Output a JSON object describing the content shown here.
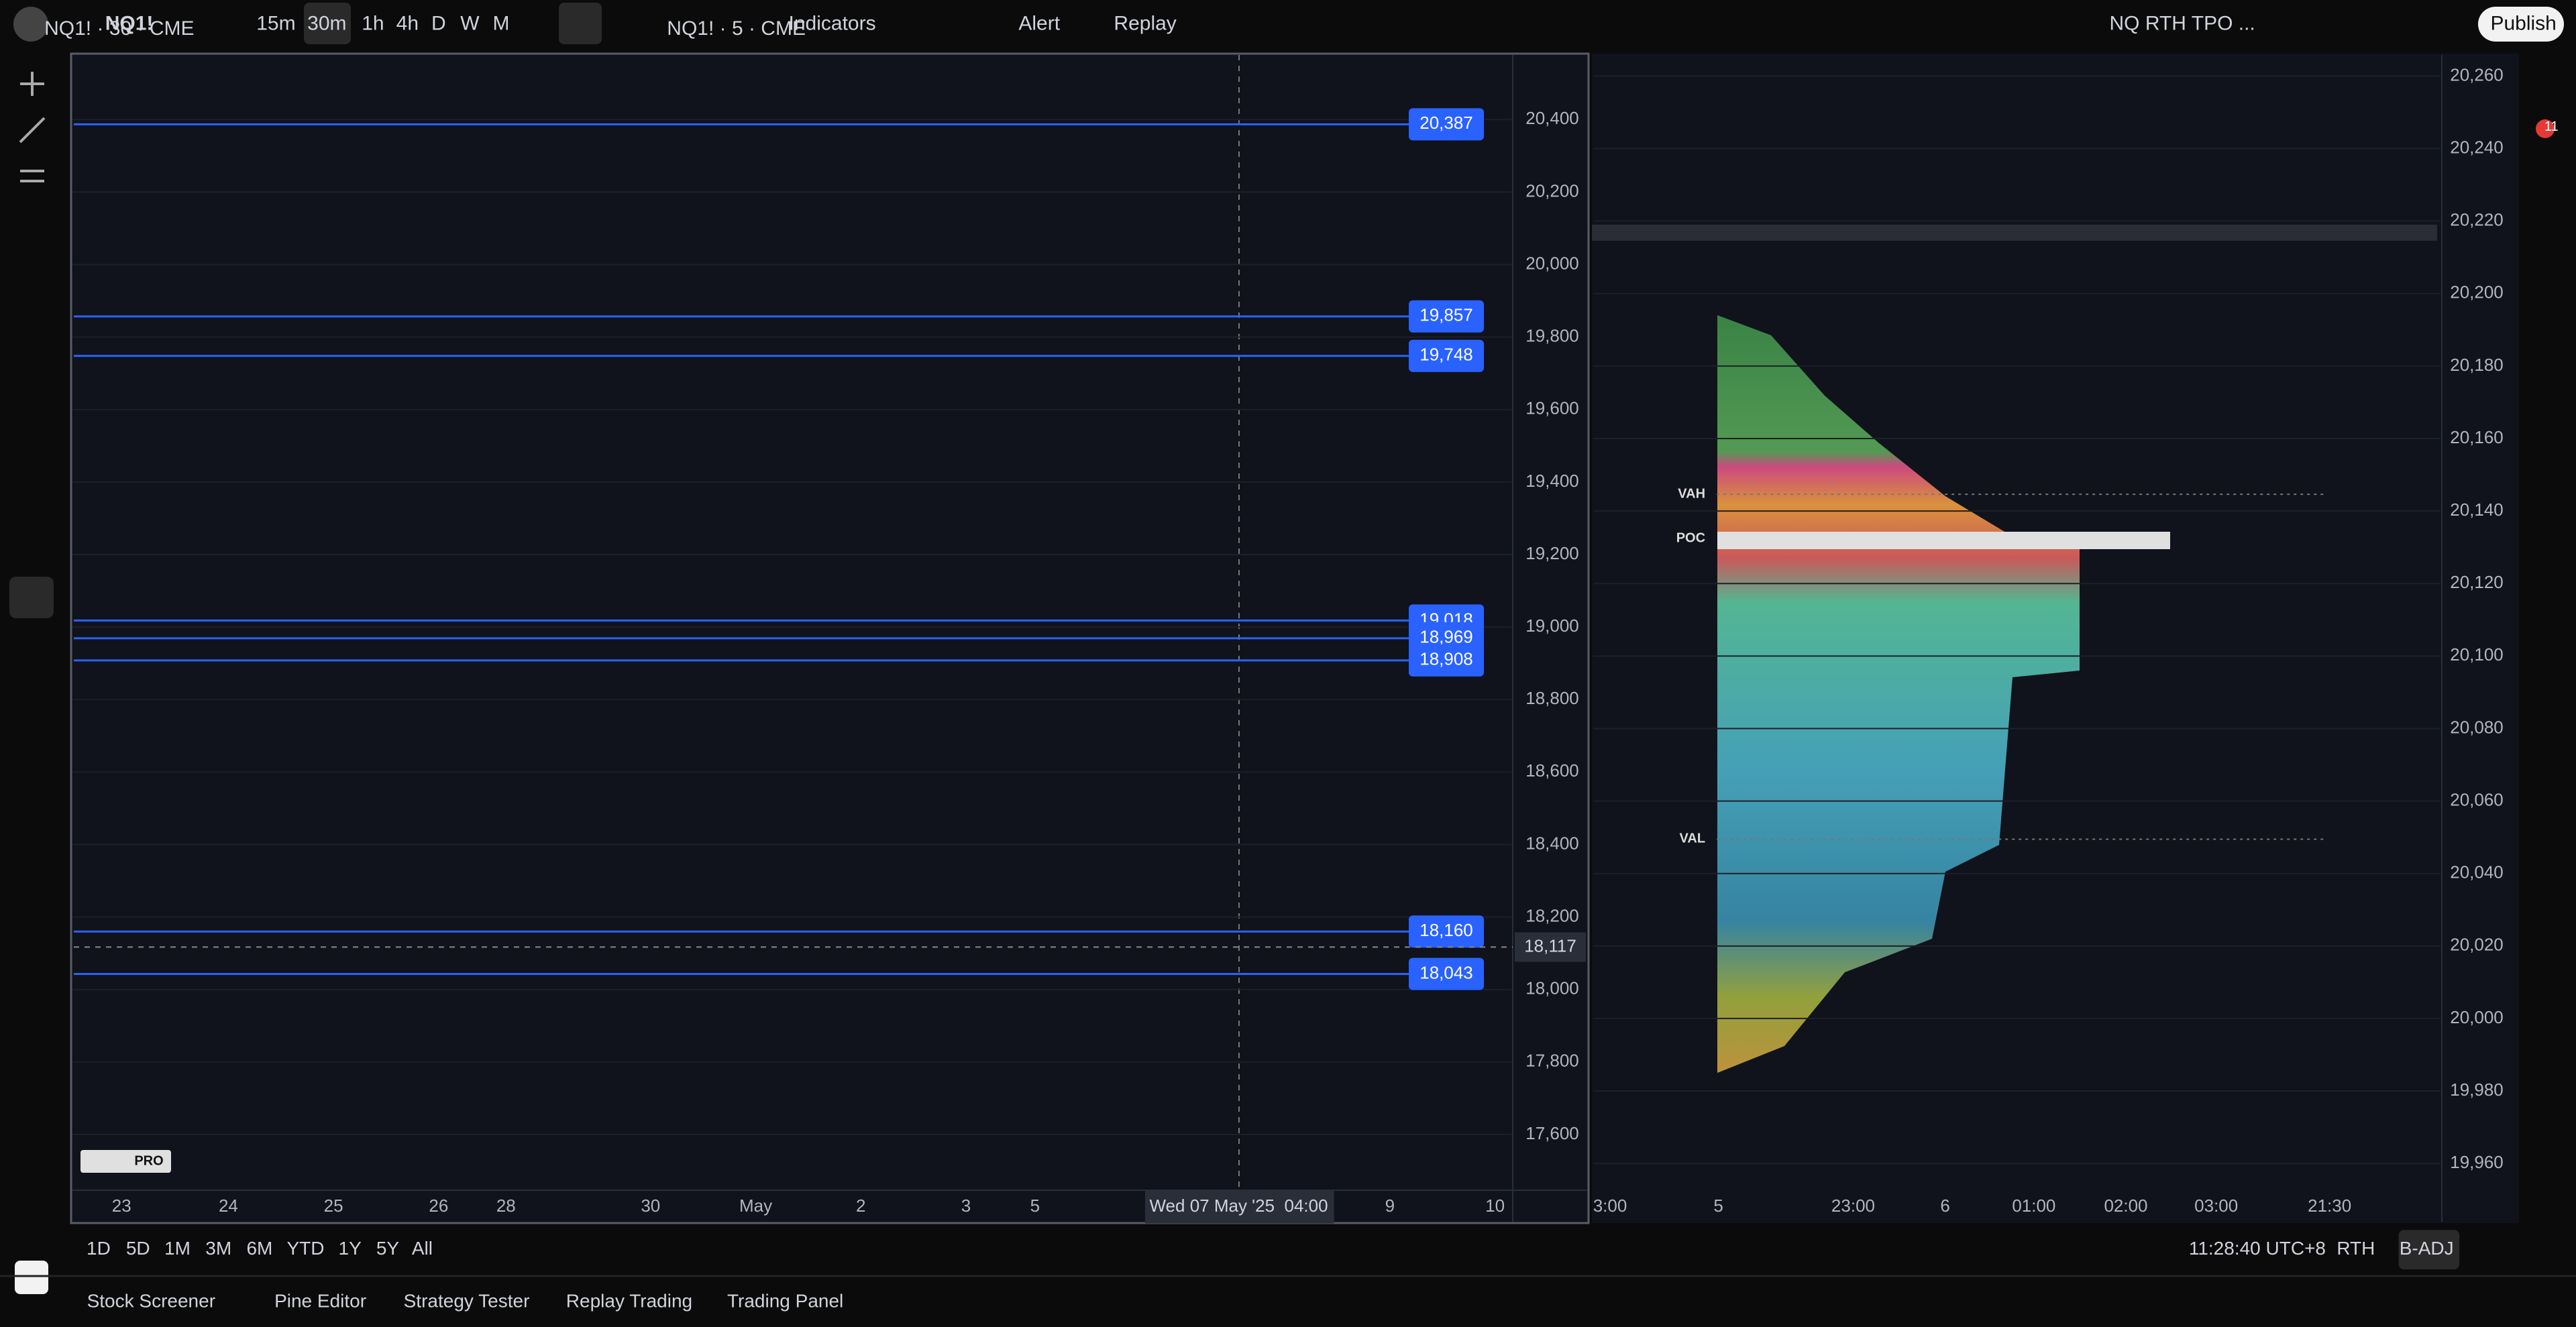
{
  "toolbar": {
    "symbol": "NQ1!",
    "timeframes": [
      "15m",
      "30m",
      "1h",
      "4h",
      "D",
      "W",
      "M"
    ],
    "indicators": "Indicators",
    "alert": "Alert",
    "replay": "Replay",
    "layout": "NQ RTH TPO ...",
    "publish": "Publish",
    "alert_count": "11"
  },
  "left_chart": {
    "title": "NQ1! · 30 · CME",
    "ylim": [
      17450,
      20580
    ],
    "yticks": [
      {
        "value": 20400,
        "label": "20,400"
      },
      {
        "value": 20200,
        "label": "20,200"
      },
      {
        "value": 20000,
        "label": "20,000"
      },
      {
        "value": 19800,
        "label": "19,800"
      },
      {
        "value": 19600,
        "label": "19,600"
      },
      {
        "value": 19400,
        "label": "19,400"
      },
      {
        "value": 19200,
        "label": "19,200"
      },
      {
        "value": 19000,
        "label": "19,000"
      },
      {
        "value": 18800,
        "label": "18,800"
      },
      {
        "value": 18600,
        "label": "18,600"
      },
      {
        "value": 18400,
        "label": "18,400"
      },
      {
        "value": 18200,
        "label": "18,200"
      },
      {
        "value": 18000,
        "label": "18,000"
      },
      {
        "value": 17800,
        "label": "17,800"
      },
      {
        "value": 17600,
        "label": "17,600"
      }
    ],
    "price_levels": [
      {
        "value": 20387,
        "label": "20,387"
      },
      {
        "value": 19857,
        "label": "19,857"
      },
      {
        "value": 19748,
        "label": "19,748"
      },
      {
        "value": 19018,
        "label": "19,018"
      },
      {
        "value": 18969,
        "label": "18,969"
      },
      {
        "value": 18908,
        "label": "18,908"
      },
      {
        "value": 18160,
        "label": "18,160"
      },
      {
        "value": 18043,
        "label": "18,043"
      }
    ],
    "last_price": {
      "value": 18117,
      "label": "18,117"
    },
    "xlabels": [
      "23",
      "24",
      "25",
      "26",
      "28",
      "30",
      "May",
      "2",
      "3",
      "5",
      "9",
      "10"
    ],
    "cursor_time": "Wed 07 May '25  04:00",
    "watermark": "PRO"
  },
  "right_chart": {
    "title": "NQ1! · 5 · CME",
    "ylim": [
      19953,
      20266
    ],
    "yticks": [
      {
        "value": 20260,
        "label": "20,260"
      },
      {
        "value": 20240,
        "label": "20,240"
      },
      {
        "value": 20220,
        "label": "20,220"
      },
      {
        "value": 20200,
        "label": "20,200"
      },
      {
        "value": 20180,
        "label": "20,180"
      },
      {
        "value": 20160,
        "label": "20,160"
      },
      {
        "value": 20140,
        "label": "20,140"
      },
      {
        "value": 20120,
        "label": "20,120"
      },
      {
        "value": 20100,
        "label": "20,100"
      },
      {
        "value": 20080,
        "label": "20,080"
      },
      {
        "value": 20060,
        "label": "20,060"
      },
      {
        "value": 20040,
        "label": "20,040"
      },
      {
        "value": 20020,
        "label": "20,020"
      },
      {
        "value": 20000,
        "label": "20,000"
      },
      {
        "value": 19980,
        "label": "19,980"
      },
      {
        "value": 19960,
        "label": "19,960"
      }
    ],
    "xlabels": [
      "3:00",
      "5",
      "23:00",
      "6",
      "01:00",
      "02:00",
      "03:00",
      "21:30"
    ],
    "profile_labels": [
      "VAH",
      "POC",
      "VAL"
    ]
  },
  "bottom_bar": {
    "ranges": [
      "1D",
      "5D",
      "1M",
      "3M",
      "6M",
      "YTD",
      "1Y",
      "5Y",
      "All"
    ],
    "time": "11:28:40 UTC+8",
    "session": "RTH",
    "adjust": "B-ADJ"
  },
  "tabs": [
    "Stock Screener",
    "Pine Editor",
    "Strategy Tester",
    "Replay Trading",
    "Trading Panel"
  ]
}
